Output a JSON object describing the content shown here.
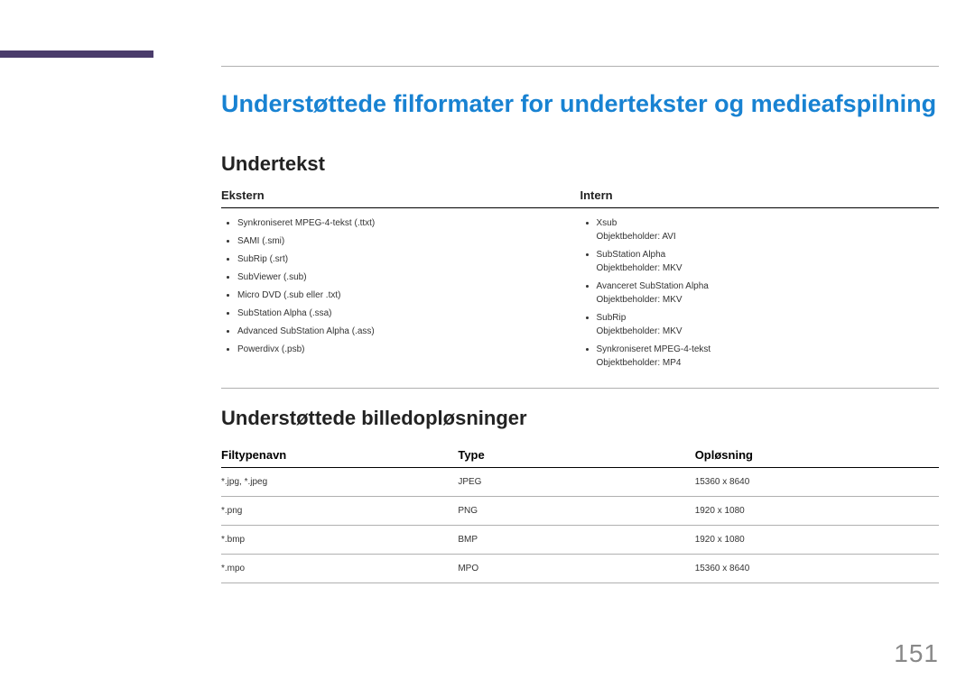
{
  "accent_color": "#4a3c6b",
  "heading_color": "#1882d2",
  "h1": "Understøttede filformater for undertekster og medieafspilning",
  "h2_subtitles": "Undertekst",
  "subtitle_cols": {
    "external": {
      "head": "Ekstern",
      "items": [
        "Synkroniseret MPEG-4-tekst (.ttxt)",
        "SAMI (.smi)",
        "SubRip (.srt)",
        "SubViewer (.sub)",
        "Micro DVD (.sub eller .txt)",
        "SubStation Alpha (.ssa)",
        "Advanced SubStation Alpha (.ass)",
        "Powerdivx (.psb)"
      ]
    },
    "internal": {
      "head": "Intern",
      "items": [
        {
          "name": "Xsub",
          "container": "Objektbeholder: AVI"
        },
        {
          "name": "SubStation Alpha",
          "container": "Objektbeholder: MKV"
        },
        {
          "name": "Avanceret SubStation Alpha",
          "container": "Objektbeholder: MKV"
        },
        {
          "name": "SubRip",
          "container": "Objektbeholder: MKV"
        },
        {
          "name": "Synkroniseret MPEG-4-tekst",
          "container": "Objektbeholder: MP4"
        }
      ]
    }
  },
  "h2_resolutions": "Understøttede billedopløsninger",
  "res_table": {
    "columns": [
      "Filtypenavn",
      "Type",
      "Opløsning"
    ],
    "rows": [
      [
        "*.jpg, *.jpeg",
        "JPEG",
        "15360 x 8640"
      ],
      [
        "*.png",
        "PNG",
        "1920 x 1080"
      ],
      [
        "*.bmp",
        "BMP",
        "1920 x 1080"
      ],
      [
        "*.mpo",
        "MPO",
        "15360 x 8640"
      ]
    ]
  },
  "page_number": "151"
}
